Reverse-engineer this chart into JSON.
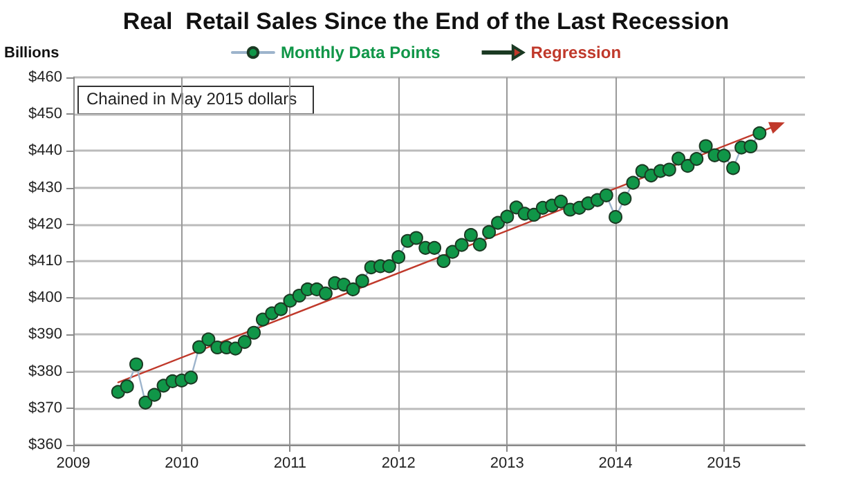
{
  "chart_data": {
    "type": "line",
    "title": "Real  Retail Sales Since the End of the Last Recession",
    "ylabel": "Billions",
    "annotations": [
      "Chained in May 2015 dollars"
    ],
    "x": [
      "2009-06",
      "2009-07",
      "2009-08",
      "2009-09",
      "2009-10",
      "2009-11",
      "2009-12",
      "2010-01",
      "2010-02",
      "2010-03",
      "2010-04",
      "2010-05",
      "2010-06",
      "2010-07",
      "2010-08",
      "2010-09",
      "2010-10",
      "2010-11",
      "2010-12",
      "2011-01",
      "2011-02",
      "2011-03",
      "2011-04",
      "2011-05",
      "2011-06",
      "2011-07",
      "2011-08",
      "2011-09",
      "2011-10",
      "2011-11",
      "2011-12",
      "2012-01",
      "2012-02",
      "2012-03",
      "2012-04",
      "2012-05",
      "2012-06",
      "2012-07",
      "2012-08",
      "2012-09",
      "2012-10",
      "2012-11",
      "2012-12",
      "2013-01",
      "2013-02",
      "2013-03",
      "2013-04",
      "2013-05",
      "2013-06",
      "2013-07",
      "2013-08",
      "2013-09",
      "2013-10",
      "2013-11",
      "2013-12",
      "2014-01",
      "2014-02",
      "2014-03",
      "2014-04",
      "2014-05",
      "2014-06",
      "2014-07",
      "2014-08",
      "2014-09",
      "2014-10",
      "2014-11",
      "2014-12",
      "2015-01",
      "2015-02",
      "2015-03",
      "2015-04",
      "2015-05"
    ],
    "series": [
      {
        "name": "Monthly Data Points",
        "color": "#109648",
        "marker": "circle",
        "values": [
          374.4,
          375.9,
          381.9,
          371.5,
          373.6,
          376.1,
          377.3,
          377.5,
          378.3,
          386.6,
          388.7,
          386.5,
          386.5,
          386.2,
          388.0,
          390.5,
          394.1,
          395.8,
          396.9,
          399.2,
          400.6,
          402.3,
          402.3,
          401.2,
          404.0,
          403.6,
          402.3,
          404.6,
          408.3,
          408.6,
          408.6,
          411.1,
          415.5,
          416.3,
          413.6,
          413.6,
          410.0,
          412.5,
          414.4,
          417.1,
          414.5,
          417.9,
          420.4,
          422.1,
          424.6,
          422.9,
          422.6,
          424.5,
          425.1,
          426.2,
          424.0,
          424.5,
          425.7,
          426.6,
          427.9,
          422.0,
          427.0,
          431.3,
          434.5,
          433.3,
          434.5,
          434.9,
          437.9,
          435.9,
          437.8,
          441.3,
          438.8,
          438.7,
          435.3,
          440.9,
          441.2,
          444.8
        ]
      },
      {
        "name": "Regression",
        "type": "line",
        "color": "#c0392b",
        "x": [
          "2009-06",
          "2015-07"
        ],
        "values": [
          377,
          447
        ]
      }
    ],
    "xlim": [
      "2009-01",
      "2015-10"
    ],
    "xticks": [
      "2009",
      "2010",
      "2011",
      "2012",
      "2013",
      "2014",
      "2015"
    ],
    "ylim": [
      360,
      460
    ],
    "yticks": [
      {
        "value": 360,
        "label": "$360"
      },
      {
        "value": 370,
        "label": "$370"
      },
      {
        "value": 380,
        "label": "$380"
      },
      {
        "value": 390,
        "label": "$390"
      },
      {
        "value": 400,
        "label": "$400"
      },
      {
        "value": 410,
        "label": "$410"
      },
      {
        "value": 420,
        "label": "$420"
      },
      {
        "value": 430,
        "label": "$430"
      },
      {
        "value": 440,
        "label": "$440"
      },
      {
        "value": 450,
        "label": "$450"
      },
      {
        "value": 460,
        "label": "$460"
      }
    ],
    "grid": true,
    "legend": "top"
  }
}
